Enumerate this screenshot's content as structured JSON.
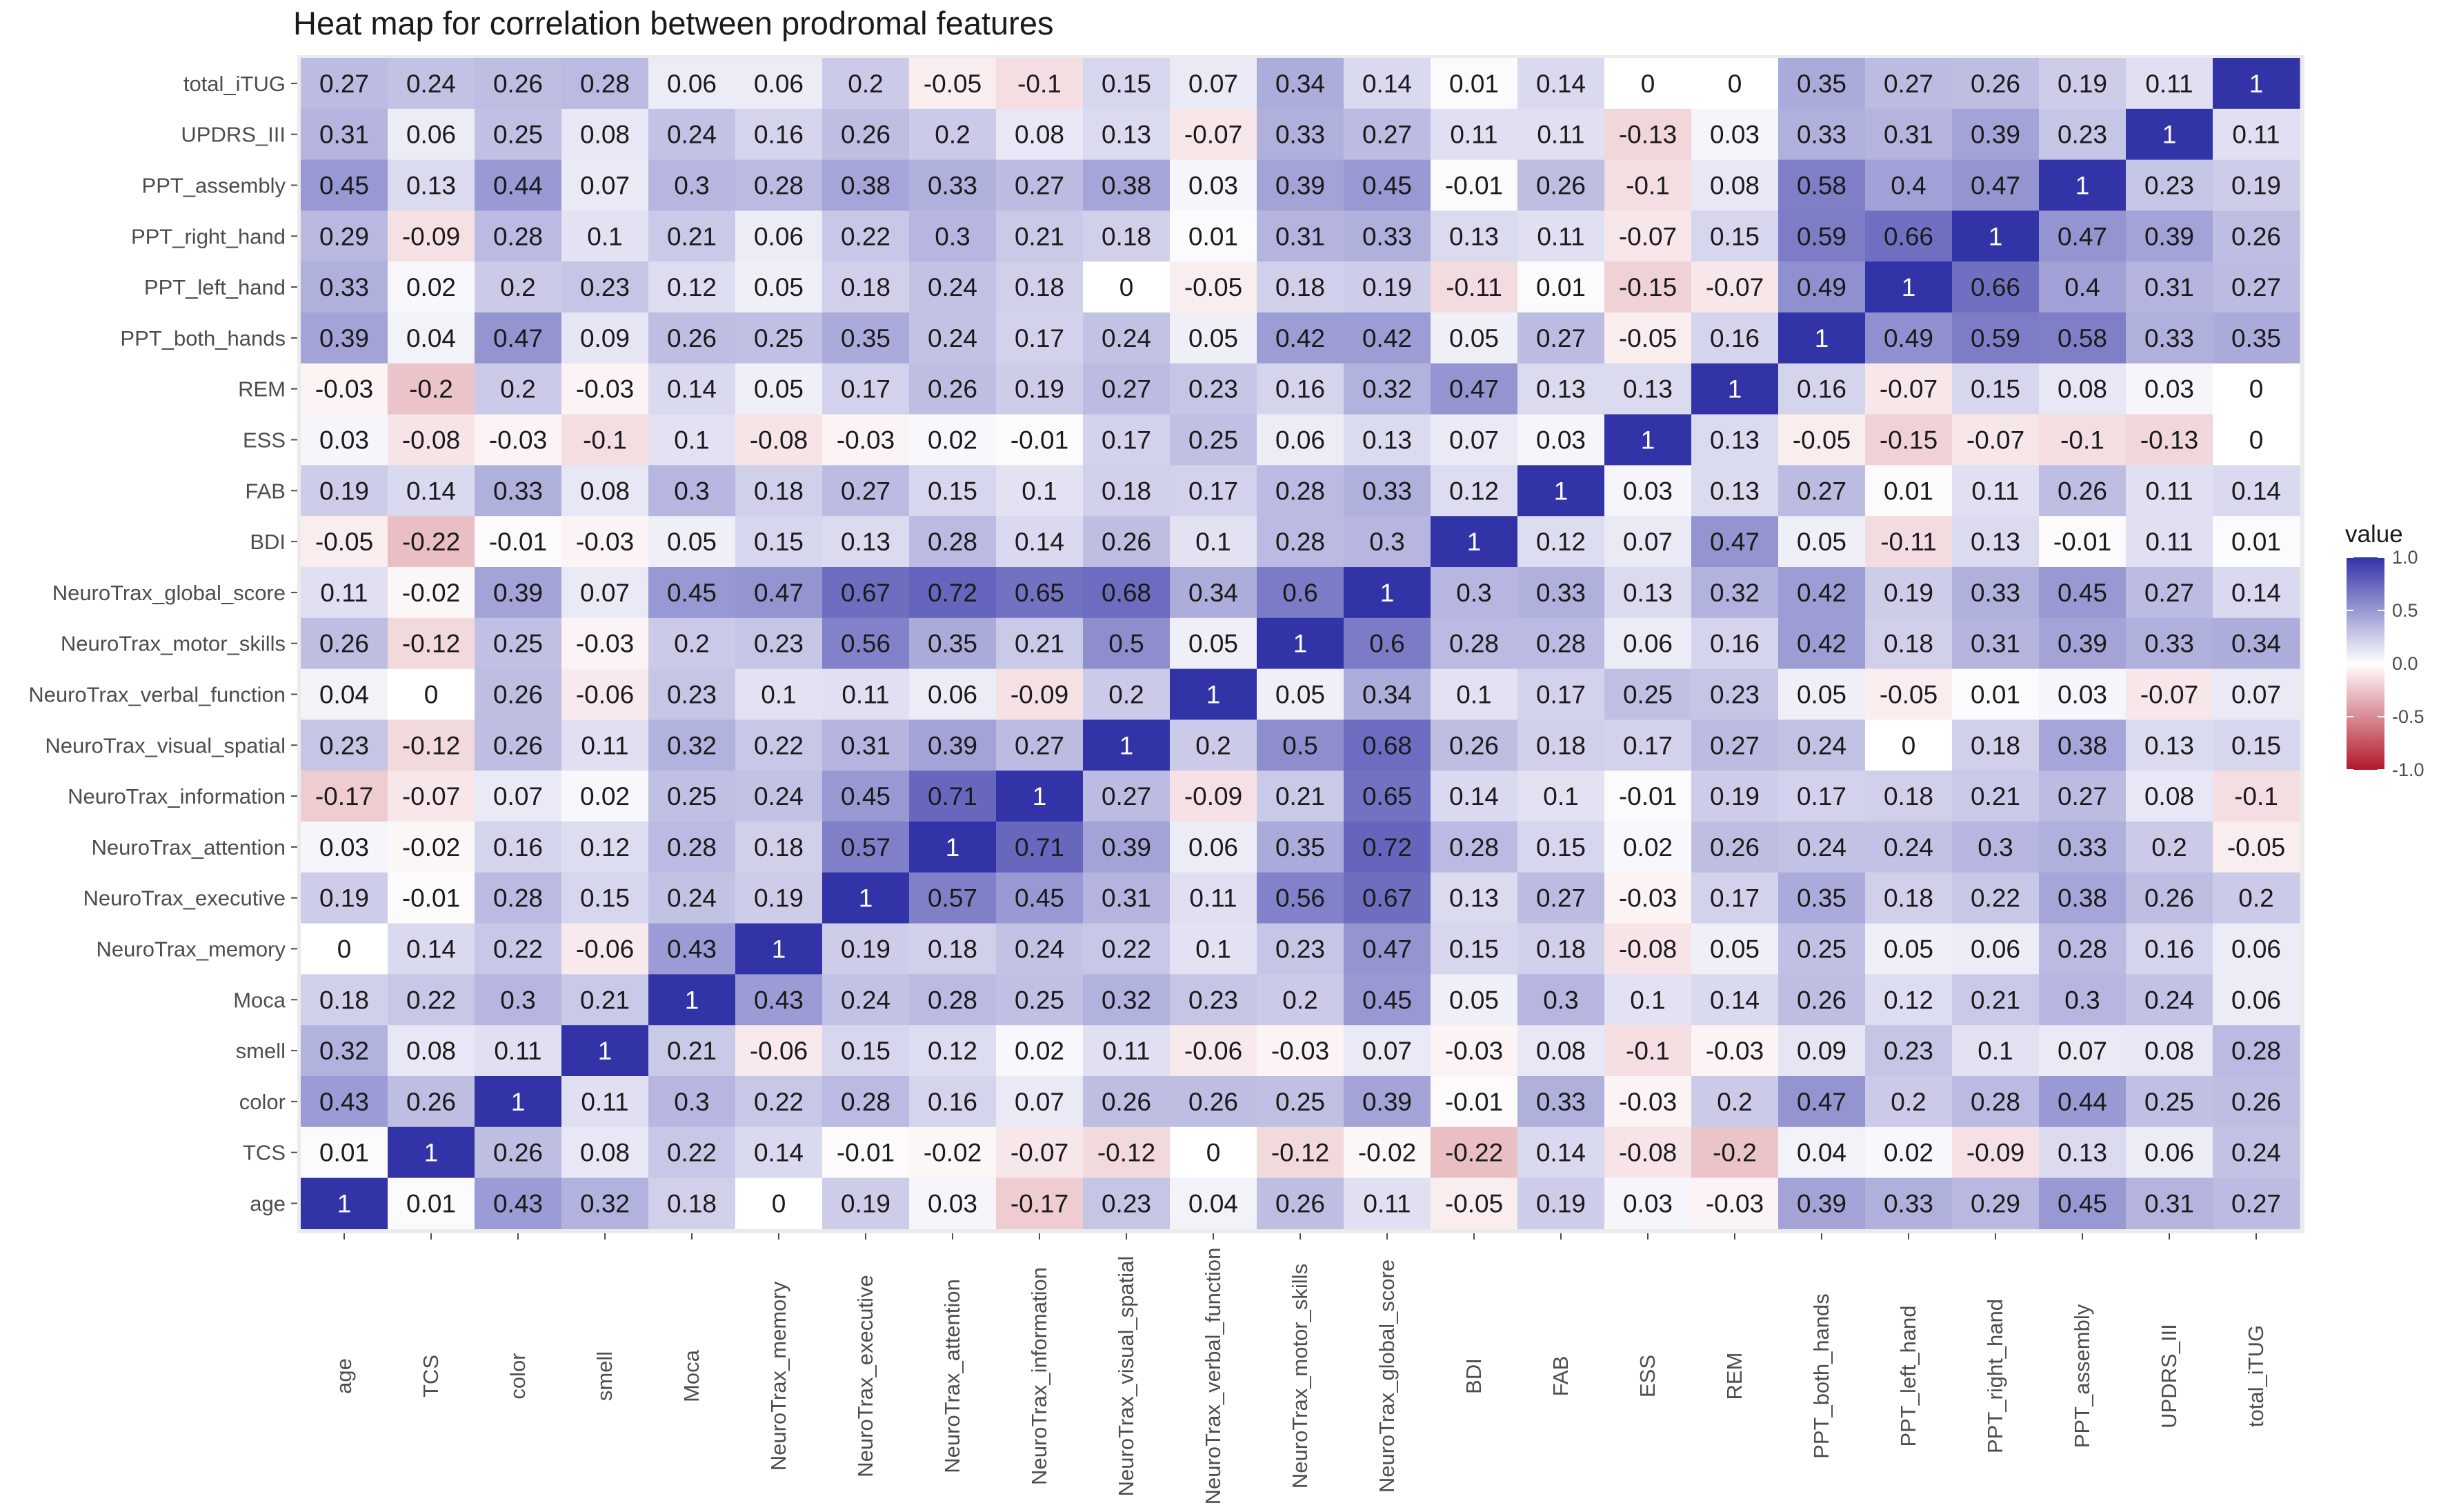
{
  "chart_data": {
    "type": "heatmap",
    "title": "Heat map for correlation between prodromal features",
    "x": [
      "age",
      "TCS",
      "color",
      "smell",
      "Moca",
      "NeuroTrax_memory",
      "NeuroTrax_executive",
      "NeuroTrax_attention",
      "NeuroTrax_information",
      "NeuroTrax_visual_spatial",
      "NeuroTrax_verbal_function",
      "NeuroTrax_motor_skills",
      "NeuroTrax_global_score",
      "BDI",
      "FAB",
      "ESS",
      "REM",
      "PPT_both_hands",
      "PPT_left_hand",
      "PPT_right_hand",
      "PPT_assembly",
      "UPDRS_III",
      "total_iTUG"
    ],
    "y": [
      "total_iTUG",
      "UPDRS_III",
      "PPT_assembly",
      "PPT_right_hand",
      "PPT_left_hand",
      "PPT_both_hands",
      "REM",
      "ESS",
      "FAB",
      "BDI",
      "NeuroTrax_global_score",
      "NeuroTrax_motor_skills",
      "NeuroTrax_verbal_function",
      "NeuroTrax_visual_spatial",
      "NeuroTrax_information",
      "NeuroTrax_attention",
      "NeuroTrax_executive",
      "NeuroTrax_memory",
      "Moca",
      "smell",
      "color",
      "TCS",
      "age"
    ],
    "values": [
      [
        0.27,
        0.24,
        0.26,
        0.28,
        0.06,
        0.06,
        0.2,
        -0.05,
        -0.1,
        0.15,
        0.07,
        0.34,
        0.14,
        0.01,
        0.14,
        0,
        0,
        0.35,
        0.27,
        0.26,
        0.19,
        0.11,
        1
      ],
      [
        0.31,
        0.06,
        0.25,
        0.08,
        0.24,
        0.16,
        0.26,
        0.2,
        0.08,
        0.13,
        -0.07,
        0.33,
        0.27,
        0.11,
        0.11,
        -0.13,
        0.03,
        0.33,
        0.31,
        0.39,
        0.23,
        1,
        0.11
      ],
      [
        0.45,
        0.13,
        0.44,
        0.07,
        0.3,
        0.28,
        0.38,
        0.33,
        0.27,
        0.38,
        0.03,
        0.39,
        0.45,
        -0.01,
        0.26,
        -0.1,
        0.08,
        0.58,
        0.4,
        0.47,
        1,
        0.23,
        0.19
      ],
      [
        0.29,
        -0.09,
        0.28,
        0.1,
        0.21,
        0.06,
        0.22,
        0.3,
        0.21,
        0.18,
        0.01,
        0.31,
        0.33,
        0.13,
        0.11,
        -0.07,
        0.15,
        0.59,
        0.66,
        1,
        0.47,
        0.39,
        0.26
      ],
      [
        0.33,
        0.02,
        0.2,
        0.23,
        0.12,
        0.05,
        0.18,
        0.24,
        0.18,
        0,
        -0.05,
        0.18,
        0.19,
        -0.11,
        0.01,
        -0.15,
        -0.07,
        0.49,
        1,
        0.66,
        0.4,
        0.31,
        0.27
      ],
      [
        0.39,
        0.04,
        0.47,
        0.09,
        0.26,
        0.25,
        0.35,
        0.24,
        0.17,
        0.24,
        0.05,
        0.42,
        0.42,
        0.05,
        0.27,
        -0.05,
        0.16,
        1,
        0.49,
        0.59,
        0.58,
        0.33,
        0.35
      ],
      [
        -0.03,
        -0.2,
        0.2,
        -0.03,
        0.14,
        0.05,
        0.17,
        0.26,
        0.19,
        0.27,
        0.23,
        0.16,
        0.32,
        0.47,
        0.13,
        0.13,
        1,
        0.16,
        -0.07,
        0.15,
        0.08,
        0.03,
        0
      ],
      [
        0.03,
        -0.08,
        -0.03,
        -0.1,
        0.1,
        -0.08,
        -0.03,
        0.02,
        -0.01,
        0.17,
        0.25,
        0.06,
        0.13,
        0.07,
        0.03,
        1,
        0.13,
        -0.05,
        -0.15,
        -0.07,
        -0.1,
        -0.13,
        0
      ],
      [
        0.19,
        0.14,
        0.33,
        0.08,
        0.3,
        0.18,
        0.27,
        0.15,
        0.1,
        0.18,
        0.17,
        0.28,
        0.33,
        0.12,
        1,
        0.03,
        0.13,
        0.27,
        0.01,
        0.11,
        0.26,
        0.11,
        0.14
      ],
      [
        -0.05,
        -0.22,
        -0.01,
        -0.03,
        0.05,
        0.15,
        0.13,
        0.28,
        0.14,
        0.26,
        0.1,
        0.28,
        0.3,
        1,
        0.12,
        0.07,
        0.47,
        0.05,
        -0.11,
        0.13,
        -0.01,
        0.11,
        0.01
      ],
      [
        0.11,
        -0.02,
        0.39,
        0.07,
        0.45,
        0.47,
        0.67,
        0.72,
        0.65,
        0.68,
        0.34,
        0.6,
        1,
        0.3,
        0.33,
        0.13,
        0.32,
        0.42,
        0.19,
        0.33,
        0.45,
        0.27,
        0.14
      ],
      [
        0.26,
        -0.12,
        0.25,
        -0.03,
        0.2,
        0.23,
        0.56,
        0.35,
        0.21,
        0.5,
        0.05,
        1,
        0.6,
        0.28,
        0.28,
        0.06,
        0.16,
        0.42,
        0.18,
        0.31,
        0.39,
        0.33,
        0.34
      ],
      [
        0.04,
        0,
        0.26,
        -0.06,
        0.23,
        0.1,
        0.11,
        0.06,
        -0.09,
        0.2,
        1,
        0.05,
        0.34,
        0.1,
        0.17,
        0.25,
        0.23,
        0.05,
        -0.05,
        0.01,
        0.03,
        -0.07,
        0.07
      ],
      [
        0.23,
        -0.12,
        0.26,
        0.11,
        0.32,
        0.22,
        0.31,
        0.39,
        0.27,
        1,
        0.2,
        0.5,
        0.68,
        0.26,
        0.18,
        0.17,
        0.27,
        0.24,
        0,
        0.18,
        0.38,
        0.13,
        0.15
      ],
      [
        -0.17,
        -0.07,
        0.07,
        0.02,
        0.25,
        0.24,
        0.45,
        0.71,
        1,
        0.27,
        -0.09,
        0.21,
        0.65,
        0.14,
        0.1,
        -0.01,
        0.19,
        0.17,
        0.18,
        0.21,
        0.27,
        0.08,
        -0.1
      ],
      [
        0.03,
        -0.02,
        0.16,
        0.12,
        0.28,
        0.18,
        0.57,
        1,
        0.71,
        0.39,
        0.06,
        0.35,
        0.72,
        0.28,
        0.15,
        0.02,
        0.26,
        0.24,
        0.24,
        0.3,
        0.33,
        0.2,
        -0.05
      ],
      [
        0.19,
        -0.01,
        0.28,
        0.15,
        0.24,
        0.19,
        1,
        0.57,
        0.45,
        0.31,
        0.11,
        0.56,
        0.67,
        0.13,
        0.27,
        -0.03,
        0.17,
        0.35,
        0.18,
        0.22,
        0.38,
        0.26,
        0.2
      ],
      [
        0,
        0.14,
        0.22,
        -0.06,
        0.43,
        1,
        0.19,
        0.18,
        0.24,
        0.22,
        0.1,
        0.23,
        0.47,
        0.15,
        0.18,
        -0.08,
        0.05,
        0.25,
        0.05,
        0.06,
        0.28,
        0.16,
        0.06
      ],
      [
        0.18,
        0.22,
        0.3,
        0.21,
        1,
        0.43,
        0.24,
        0.28,
        0.25,
        0.32,
        0.23,
        0.2,
        0.45,
        0.05,
        0.3,
        0.1,
        0.14,
        0.26,
        0.12,
        0.21,
        0.3,
        0.24,
        0.06
      ],
      [
        0.32,
        0.08,
        0.11,
        1,
        0.21,
        -0.06,
        0.15,
        0.12,
        0.02,
        0.11,
        -0.06,
        -0.03,
        0.07,
        -0.03,
        0.08,
        -0.1,
        -0.03,
        0.09,
        0.23,
        0.1,
        0.07,
        0.08,
        0.28
      ],
      [
        0.43,
        0.26,
        1,
        0.11,
        0.3,
        0.22,
        0.28,
        0.16,
        0.07,
        0.26,
        0.26,
        0.25,
        0.39,
        -0.01,
        0.33,
        -0.03,
        0.2,
        0.47,
        0.2,
        0.28,
        0.44,
        0.25,
        0.26
      ],
      [
        0.01,
        1,
        0.26,
        0.08,
        0.22,
        0.14,
        -0.01,
        -0.02,
        -0.07,
        -0.12,
        0,
        -0.12,
        -0.02,
        -0.22,
        0.14,
        -0.08,
        -0.2,
        0.04,
        0.02,
        -0.09,
        0.13,
        0.06,
        0.24
      ],
      [
        1,
        0.01,
        0.43,
        0.32,
        0.18,
        0,
        0.19,
        0.03,
        -0.17,
        0.23,
        0.04,
        0.26,
        0.11,
        -0.05,
        0.19,
        0.03,
        -0.03,
        0.39,
        0.33,
        0.29,
        0.45,
        0.31,
        0.27
      ]
    ],
    "color_scale": {
      "low": "#b2182b",
      "mid": "#ffffff",
      "high": "#3333a8",
      "limits": [
        -1,
        1
      ]
    },
    "legend": {
      "title": "value",
      "ticks": [
        "1.0",
        "0.5",
        "0.0",
        "-0.5",
        "-1.0"
      ],
      "placement": "right"
    },
    "background": "#ebebeb"
  }
}
